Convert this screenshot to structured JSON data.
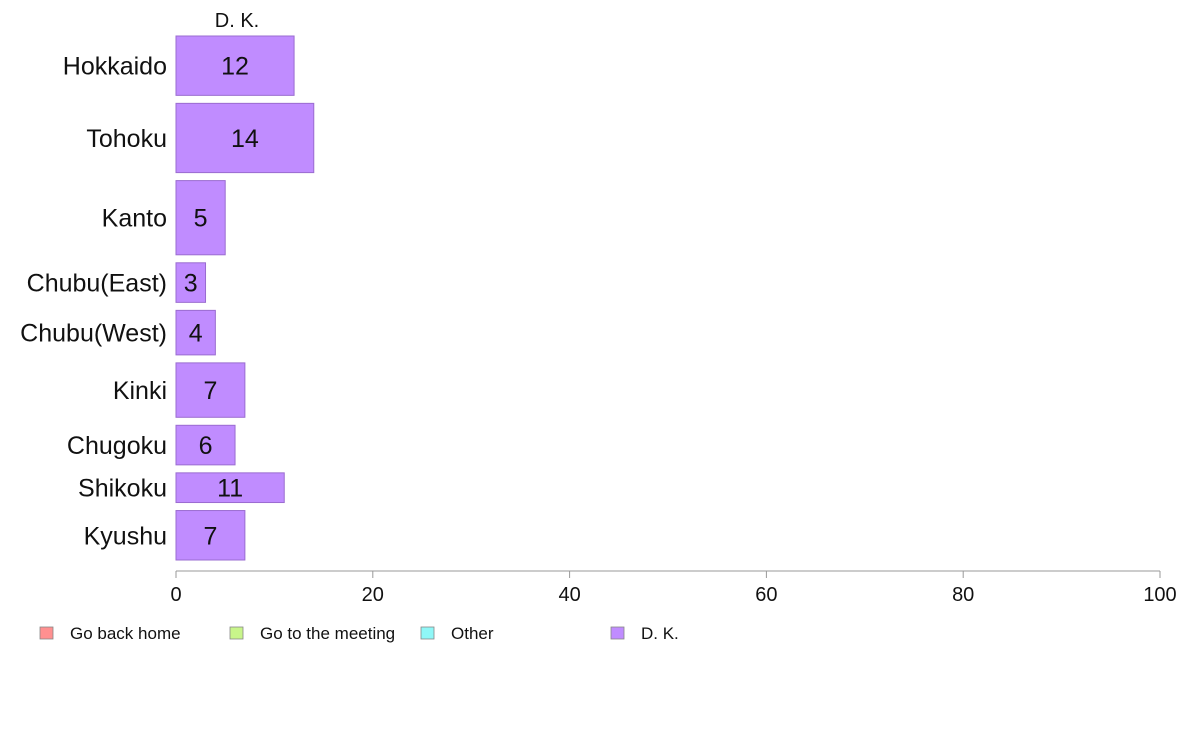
{
  "chart_data": {
    "type": "bar",
    "orientation": "horizontal",
    "stacked": true,
    "title": "",
    "xlabel": "",
    "ylabel": "",
    "xlim": [
      0,
      100
    ],
    "ticks": [
      "0",
      "20",
      "40",
      "60",
      "80",
      "100"
    ],
    "grid": false,
    "legend_position": "bottom",
    "categories": [
      "Hokkaido",
      "Tohoku",
      "Kanto",
      "Chubu(East)",
      "Chubu(West)",
      "Kinki",
      "Chugoku",
      "Shikoku",
      "Kyushu"
    ],
    "relative_widths": [
      12,
      14,
      15,
      8,
      9,
      11,
      8,
      6,
      10
    ],
    "series": [
      {
        "name": "Go back home",
        "color": "#ff9090",
        "values": [
          0,
          0,
          0,
          0,
          0,
          0,
          0,
          0,
          0
        ]
      },
      {
        "name": "Go to the meeting",
        "color": "#c8f58a",
        "values": [
          0,
          0,
          0,
          0,
          0,
          0,
          0,
          0,
          0
        ]
      },
      {
        "name": "Other",
        "color": "#8ff7f7",
        "values": [
          0,
          0,
          0,
          0,
          0,
          0,
          0,
          0,
          0
        ]
      },
      {
        "name": "D. K.",
        "color": "#c08cff",
        "values": [
          12,
          14,
          5,
          3,
          4,
          7,
          6,
          11,
          7
        ],
        "labels": [
          "12",
          "14",
          "5",
          "3",
          "4",
          "7",
          "6",
          "11",
          "7"
        ]
      }
    ],
    "series_title": "D. K.",
    "bar_border_color": "#9a6cd0",
    "axis_color": "#999999"
  }
}
